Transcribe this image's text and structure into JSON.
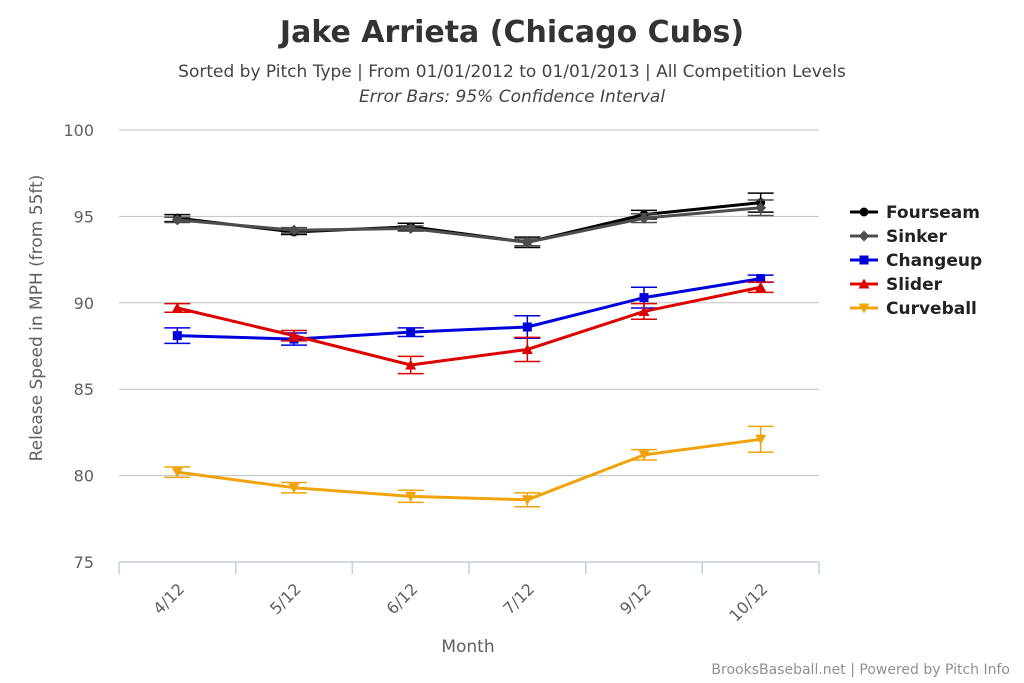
{
  "chart_data": {
    "type": "line",
    "title": "Jake Arrieta (Chicago Cubs)",
    "subtitle": "Sorted by Pitch Type | From 01/01/2012 to 01/01/2013 | All Competition Levels",
    "subtitle2": "Error Bars: 95% Confidence Interval",
    "xlabel": "Month",
    "ylabel": "Release Speed in MPH (from 55ft)",
    "ylim": [
      75,
      100
    ],
    "yticks": [
      "75",
      "80",
      "85",
      "90",
      "95",
      "100"
    ],
    "categories": [
      "4/12",
      "5/12",
      "6/12",
      "7/12",
      "9/12",
      "10/12"
    ],
    "grid": true,
    "legend_position": "right",
    "series": [
      {
        "name": "Fourseam",
        "color": "#000000",
        "marker": "circle",
        "values": [
          94.9,
          94.1,
          94.4,
          93.5,
          95.1,
          95.8
        ],
        "error": [
          0.2,
          0.15,
          0.2,
          0.3,
          0.25,
          0.55
        ]
      },
      {
        "name": "Sinker",
        "color": "#4d4d4d",
        "marker": "diamond",
        "values": [
          94.8,
          94.2,
          94.3,
          93.5,
          94.9,
          95.5
        ],
        "error": [
          0.15,
          0.15,
          0.15,
          0.2,
          0.25,
          0.45
        ]
      },
      {
        "name": "Changeup",
        "color": "#0000dd",
        "marker": "square",
        "values": [
          88.1,
          87.9,
          88.3,
          88.6,
          90.3,
          91.4
        ],
        "error": [
          0.45,
          0.35,
          0.25,
          0.65,
          0.6,
          0.2
        ]
      },
      {
        "name": "Slider",
        "color": "#dd0000",
        "marker": "triangle",
        "values": [
          89.7,
          88.1,
          86.4,
          87.3,
          89.5,
          90.9
        ],
        "error": [
          0.25,
          0.3,
          0.5,
          0.7,
          0.45,
          0.3
        ]
      },
      {
        "name": "Curveball",
        "color": "#f0a30a",
        "marker": "triangle-down",
        "values": [
          80.2,
          79.3,
          78.8,
          78.6,
          81.2,
          82.1
        ],
        "error": [
          0.3,
          0.3,
          0.35,
          0.4,
          0.3,
          0.75
        ]
      }
    ],
    "credit": "BrooksBaseball.net | Powered by Pitch Info"
  }
}
